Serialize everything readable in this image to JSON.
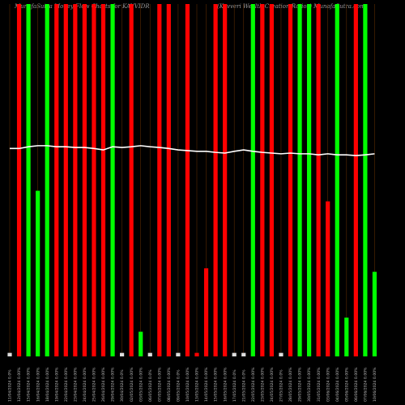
{
  "chart_data": {
    "type": "bar",
    "title": "MunafaSutra Money Flow Charts for KAVVIDR",
    "subtitle": "(Kavveri Wealth Creation Ratios) MunafaSutra.com",
    "categories": [
      "11/04/2024 0.0%",
      "12/04/2024 0.00%",
      "15/04/2024 0.00%",
      "16/04/2024 0.00%",
      "18/04/2024 0.00%",
      "19/04/2024 0.00%",
      "22/04/2024 0.00%",
      "23/04/2024 0.00%",
      "24/04/2024 0.00%",
      "25/04/2024 0.00%",
      "26/04/2024 0.00%",
      "29/04/2024 0.00%",
      "30/04/2024 0.0%",
      "02/05/2024 0.00%",
      "03/05/2024 0.00%",
      "06/05/2024 0.0%",
      "07/05/2024 0.00%",
      "08/05/2024 0.00%",
      "09/05/2024 0.0%",
      "10/05/2024 0.00%",
      "13/05/2024 0.00%",
      "14/05/2024 0.00%",
      "15/05/2024 0.00%",
      "16/05/2024 0.00%",
      "17/05/2024 0.0%",
      "21/05/2024 0.0%",
      "22/05/2024 0.00%",
      "23/05/2024 0.00%",
      "24/05/2024 0.00%",
      "27/05/2024 0.0%",
      "28/05/2024 0.00%",
      "29/05/2024 0.00%",
      "30/05/2024 0.00%",
      "31/05/2024 0.00%",
      "03/06/2024 0.00%",
      "04/06/2024 0.00%",
      "05/06/2024 0.00%",
      "06/06/2024 0.00%",
      "07/06/2024 0.00%",
      "10/06/2024 0.00%"
    ],
    "values": [
      1,
      100,
      100,
      47,
      100,
      100,
      100,
      100,
      100,
      100,
      100,
      100,
      1,
      100,
      7,
      1,
      100,
      100,
      1,
      100,
      1,
      25,
      100,
      100,
      1,
      1,
      100,
      100,
      100,
      1,
      100,
      100,
      100,
      100,
      44,
      100,
      11,
      100,
      100,
      24
    ],
    "colors": [
      "#ddd",
      "red",
      "lime",
      "lime",
      "lime",
      "red",
      "red",
      "red",
      "red",
      "red",
      "red",
      "lime",
      "#ddd",
      "red",
      "lime",
      "#ddd",
      "red",
      "red",
      "#ddd",
      "red",
      "red",
      "red",
      "red",
      "red",
      "#ddd",
      "#ddd",
      "lime",
      "red",
      "red",
      "#ddd",
      "red",
      "lime",
      "lime",
      "red",
      "red",
      "lime",
      "lime",
      "red",
      "lime",
      "lime"
    ],
    "line": [
      59,
      59,
      59.5,
      59.8,
      59.8,
      59.5,
      59.5,
      59.3,
      59.3,
      59,
      58.6,
      59.5,
      59.3,
      59.5,
      59.8,
      59.5,
      59.3,
      59,
      58.6,
      58.4,
      58.2,
      58.2,
      57.9,
      57.7,
      58.2,
      58.6,
      58.2,
      57.9,
      57.7,
      57.5,
      57.7,
      57.5,
      57.5,
      57.2,
      57.5,
      57.2,
      57.2,
      57,
      57.2,
      57.5
    ],
    "ylim": [
      0,
      100
    ]
  }
}
